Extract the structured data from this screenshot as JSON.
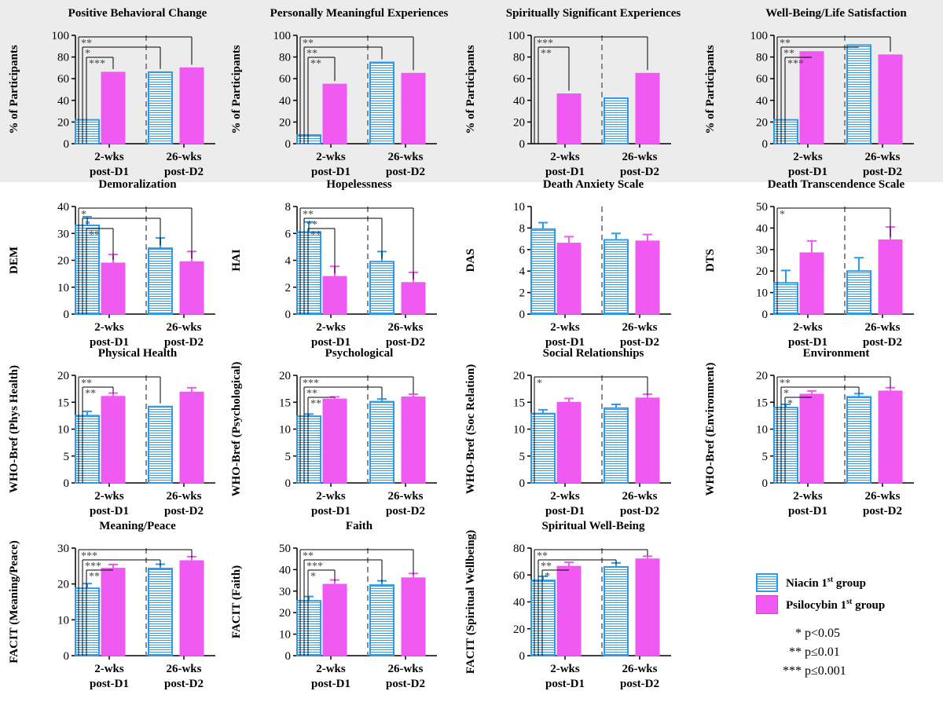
{
  "colors": {
    "niacin": "#2e9bea",
    "psilocybin": "#f15af2",
    "axis": "#000000",
    "divider": "#888888",
    "top_band": "#ececec"
  },
  "legend": {
    "niacin": {
      "label": "Niacin 1",
      "sup": "st",
      "suffix": " group"
    },
    "psilocybin": {
      "label": "Psilocybin 1",
      "sup": "st",
      "suffix": " group"
    }
  },
  "significance_key": [
    {
      "stars": "*",
      "text": "p<0.05"
    },
    {
      "stars": "**",
      "text": "p≤0.01"
    },
    {
      "stars": "***",
      "text": "p≤0.001"
    }
  ],
  "chart_data": [
    {
      "type": "bar",
      "title": "Positive Behavioral Change",
      "ylabel": "% of Participants",
      "ylim": [
        0,
        100
      ],
      "yticks": [
        0,
        20,
        40,
        60,
        80,
        100
      ],
      "categories": [
        [
          "2-wks",
          "post-D1"
        ],
        [
          "26-wks",
          "post-D2"
        ]
      ],
      "series": [
        {
          "name": "Niacin 1st group",
          "values": [
            22,
            66
          ]
        },
        {
          "name": "Psilocybin 1st group",
          "values": [
            66,
            70
          ]
        }
      ],
      "error": null,
      "comparisons": [
        {
          "from": 0,
          "to": 3,
          "label": "**"
        },
        {
          "from": 0,
          "to": 2,
          "label": "*"
        },
        {
          "from": 0,
          "to": 1,
          "label": "***"
        }
      ]
    },
    {
      "type": "bar",
      "title": "Personally Meaningful Experiences",
      "ylabel": "% of Participants",
      "ylim": [
        0,
        100
      ],
      "yticks": [
        0,
        20,
        40,
        60,
        80,
        100
      ],
      "categories": [
        [
          "2-wks",
          "post-D1"
        ],
        [
          "26-wks",
          "post-D2"
        ]
      ],
      "series": [
        {
          "name": "Niacin 1st group",
          "values": [
            8,
            75
          ]
        },
        {
          "name": "Psilocybin 1st group",
          "values": [
            55,
            65
          ]
        }
      ],
      "error": null,
      "comparisons": [
        {
          "from": 0,
          "to": 3,
          "label": "**"
        },
        {
          "from": 0,
          "to": 2,
          "label": "**"
        },
        {
          "from": 0,
          "to": 1,
          "label": "**"
        }
      ]
    },
    {
      "type": "bar",
      "title": "Spiritually Significant Experiences",
      "ylabel": "% of Participants",
      "ylim": [
        0,
        100
      ],
      "yticks": [
        0,
        20,
        40,
        60,
        80,
        100
      ],
      "categories": [
        [
          "2-wks",
          "post-D1"
        ],
        [
          "26-wks",
          "post-D2"
        ]
      ],
      "series": [
        {
          "name": "Niacin 1st group",
          "values": [
            0,
            42
          ]
        },
        {
          "name": "Psilocybin 1st group",
          "values": [
            46,
            65
          ]
        }
      ],
      "error": null,
      "comparisons": [
        {
          "from": 0,
          "to": 3,
          "label": "***"
        },
        {
          "from": 0,
          "to": 1,
          "label": "**"
        }
      ]
    },
    {
      "type": "bar",
      "title": "Well-Being/Life Satisfaction",
      "ylabel": "% of Participants",
      "ylim": [
        0,
        100
      ],
      "yticks": [
        0,
        20,
        40,
        60,
        80,
        100
      ],
      "categories": [
        [
          "2-wks",
          "post-D1"
        ],
        [
          "26-wks",
          "post-D2"
        ]
      ],
      "series": [
        {
          "name": "Niacin 1st group",
          "values": [
            22,
            91
          ]
        },
        {
          "name": "Psilocybin 1st group",
          "values": [
            85,
            82
          ]
        }
      ],
      "error": null,
      "comparisons": [
        {
          "from": 0,
          "to": 3,
          "label": "**"
        },
        {
          "from": 0,
          "to": 2,
          "label": "**"
        },
        {
          "from": 0,
          "to": 1,
          "label": "***"
        }
      ]
    },
    {
      "type": "bar",
      "title": "Demoralization",
      "ylabel": "DEM",
      "ylim": [
        0,
        40
      ],
      "yticks": [
        0,
        10,
        20,
        30,
        40
      ],
      "categories": [
        [
          "2-wks",
          "post-D1"
        ],
        [
          "26-wks",
          "post-D2"
        ]
      ],
      "series": [
        {
          "name": "Niacin 1st group",
          "values": [
            33,
            24.5
          ]
        },
        {
          "name": "Psilocybin 1st group",
          "values": [
            19,
            19.5
          ]
        }
      ],
      "error": [
        [
          3.2,
          3.8
        ],
        [
          3.2,
          3.8
        ]
      ],
      "comparisons": [
        {
          "from": 0,
          "to": 3,
          "label": "*"
        },
        {
          "from": 0,
          "to": 2,
          "label": "*"
        },
        {
          "from": 0,
          "to": 1,
          "label": "**"
        }
      ]
    },
    {
      "type": "bar",
      "title": "Hopelessness",
      "ylabel": "HAI",
      "ylim": [
        0,
        8
      ],
      "yticks": [
        0,
        2,
        4,
        6,
        8
      ],
      "categories": [
        [
          "2-wks",
          "post-D1"
        ],
        [
          "26-wks",
          "post-D2"
        ]
      ],
      "series": [
        {
          "name": "Niacin 1st group",
          "values": [
            6.1,
            3.9
          ]
        },
        {
          "name": "Psilocybin 1st group",
          "values": [
            2.8,
            2.35
          ]
        }
      ],
      "error": [
        [
          0.75,
          0.75
        ],
        [
          0.75,
          0.75
        ]
      ],
      "comparisons": [
        {
          "from": 0,
          "to": 3,
          "label": "**"
        },
        {
          "from": 0,
          "to": 2,
          "label": "**"
        },
        {
          "from": 0,
          "to": 1,
          "label": "**"
        }
      ]
    },
    {
      "type": "bar",
      "title": "Death Anxiety Scale",
      "ylabel": "DAS",
      "ylim": [
        0,
        10
      ],
      "yticks": [
        0,
        2,
        4,
        6,
        8,
        10
      ],
      "categories": [
        [
          "2-wks",
          "post-D1"
        ],
        [
          "26-wks",
          "post-D2"
        ]
      ],
      "series": [
        {
          "name": "Niacin 1st group",
          "values": [
            7.9,
            6.9
          ]
        },
        {
          "name": "Psilocybin 1st group",
          "values": [
            6.6,
            6.8
          ]
        }
      ],
      "error": [
        [
          0.6,
          0.6
        ],
        [
          0.6,
          0.6
        ]
      ],
      "comparisons": []
    },
    {
      "type": "bar",
      "title": "Death Transcendence Scale",
      "ylabel": "DTS",
      "ylim": [
        0,
        50
      ],
      "yticks": [
        0,
        10,
        20,
        30,
        40,
        50
      ],
      "categories": [
        [
          "2-wks",
          "post-D1"
        ],
        [
          "26-wks",
          "post-D2"
        ]
      ],
      "series": [
        {
          "name": "Niacin 1st group",
          "values": [
            14.5,
            20
          ]
        },
        {
          "name": "Psilocybin 1st group",
          "values": [
            28.5,
            34.5
          ]
        }
      ],
      "error": [
        [
          5.8,
          6.2
        ],
        [
          5.5,
          6.0
        ]
      ],
      "comparisons": [
        {
          "from": 0,
          "to": 3,
          "label": "*"
        }
      ]
    },
    {
      "type": "bar",
      "title": "Physical Health",
      "ylabel": "WHO-Bref (Phys Health)",
      "ylim": [
        0,
        20
      ],
      "yticks": [
        0,
        5,
        10,
        15,
        20
      ],
      "categories": [
        [
          "2-wks",
          "post-D1"
        ],
        [
          "26-wks",
          "post-D2"
        ]
      ],
      "series": [
        {
          "name": "Niacin 1st group",
          "values": [
            12.5,
            14.2
          ]
        },
        {
          "name": "Psilocybin 1st group",
          "values": [
            16.1,
            16.9
          ]
        }
      ],
      "error": [
        [
          0.8,
          0.0
        ],
        [
          0.6,
          0.8
        ]
      ],
      "comparisons": [
        {
          "from": 0,
          "to": 2,
          "label": "**"
        },
        {
          "from": 0,
          "to": 1,
          "label": "**"
        }
      ]
    },
    {
      "type": "bar",
      "title": "Psychological",
      "ylabel": "WHO-Bref (Psychological)",
      "ylim": [
        0,
        20
      ],
      "yticks": [
        0,
        5,
        10,
        15,
        20
      ],
      "categories": [
        [
          "2-wks",
          "post-D1"
        ],
        [
          "26-wks",
          "post-D2"
        ]
      ],
      "series": [
        {
          "name": "Niacin 1st group",
          "values": [
            12.4,
            15.1
          ]
        },
        {
          "name": "Psilocybin 1st group",
          "values": [
            15.6,
            16.0
          ]
        }
      ],
      "error": [
        [
          0.4,
          0.5
        ],
        [
          0.4,
          0.5
        ]
      ],
      "comparisons": [
        {
          "from": 0,
          "to": 3,
          "label": "***"
        },
        {
          "from": 0,
          "to": 2,
          "label": "**"
        },
        {
          "from": 0,
          "to": 1,
          "label": "**"
        }
      ]
    },
    {
      "type": "bar",
      "title": "Social Relationships",
      "ylabel": "WHO-Bref (Soc Relation)",
      "ylim": [
        0,
        20
      ],
      "yticks": [
        0,
        5,
        10,
        15,
        20
      ],
      "categories": [
        [
          "2-wks",
          "post-D1"
        ],
        [
          "26-wks",
          "post-D2"
        ]
      ],
      "series": [
        {
          "name": "Niacin 1st group",
          "values": [
            12.9,
            13.9
          ]
        },
        {
          "name": "Psilocybin 1st group",
          "values": [
            15.0,
            15.8
          ]
        }
      ],
      "error": [
        [
          0.7,
          0.7
        ],
        [
          0.7,
          0.7
        ]
      ],
      "comparisons": [
        {
          "from": 0,
          "to": 3,
          "label": "*"
        }
      ]
    },
    {
      "type": "bar",
      "title": "Environment",
      "ylabel": "WHO-Bref (Environment)",
      "ylim": [
        0,
        20
      ],
      "yticks": [
        0,
        5,
        10,
        15,
        20
      ],
      "categories": [
        [
          "2-wks",
          "post-D1"
        ],
        [
          "26-wks",
          "post-D2"
        ]
      ],
      "series": [
        {
          "name": "Niacin 1st group",
          "values": [
            14.0,
            16.0
          ]
        },
        {
          "name": "Psilocybin 1st group",
          "values": [
            16.5,
            17.1
          ]
        }
      ],
      "error": [
        [
          0.6,
          0.6
        ],
        [
          0.6,
          0.6
        ]
      ],
      "comparisons": [
        {
          "from": 0,
          "to": 3,
          "label": "**"
        },
        {
          "from": 0,
          "to": 2,
          "label": "*"
        },
        {
          "from": 0,
          "to": 1,
          "label": "*"
        }
      ]
    },
    {
      "type": "bar",
      "title": "Meaning/Peace",
      "ylabel": "FACIT (Meaning/Peace)",
      "ylim": [
        0,
        30
      ],
      "yticks": [
        0,
        10,
        20,
        30
      ],
      "categories": [
        [
          "2-wks",
          "post-D1"
        ],
        [
          "26-wks",
          "post-D2"
        ]
      ],
      "series": [
        {
          "name": "Niacin 1st group",
          "values": [
            18.8,
            24.3
          ]
        },
        {
          "name": "Psilocybin 1st group",
          "values": [
            24.4,
            26.5
          ]
        }
      ],
      "error": [
        [
          1.3,
          1.2
        ],
        [
          1.0,
          1.1
        ]
      ],
      "comparisons": [
        {
          "from": 0,
          "to": 3,
          "label": "***"
        },
        {
          "from": 0,
          "to": 2,
          "label": "***"
        },
        {
          "from": 0,
          "to": 1,
          "label": "**"
        }
      ]
    },
    {
      "type": "bar",
      "title": "Faith",
      "ylabel": "FACIT (Faith)",
      "ylim": [
        0,
        50
      ],
      "yticks": [
        0,
        10,
        20,
        30,
        40,
        50
      ],
      "categories": [
        [
          "2-wks",
          "post-D1"
        ],
        [
          "26-wks",
          "post-D2"
        ]
      ],
      "series": [
        {
          "name": "Niacin 1st group",
          "values": [
            25.5,
            32.8
          ]
        },
        {
          "name": "Psilocybin 1st group",
          "values": [
            33.2,
            36.2
          ]
        }
      ],
      "error": [
        [
          2.0,
          2.0
        ],
        [
          2.0,
          2.0
        ]
      ],
      "comparisons": [
        {
          "from": 0,
          "to": 3,
          "label": "**"
        },
        {
          "from": 0,
          "to": 2,
          "label": "***"
        },
        {
          "from": 0,
          "to": 1,
          "label": "*"
        }
      ]
    },
    {
      "type": "bar",
      "title": "Spiritual Well-Being",
      "ylabel": "FACIT (Spiritual Wellbeing)",
      "ylim": [
        0,
        80
      ],
      "yticks": [
        0,
        20,
        40,
        60,
        80
      ],
      "categories": [
        [
          "2-wks",
          "post-D1"
        ],
        [
          "26-wks",
          "post-D2"
        ]
      ],
      "series": [
        {
          "name": "Niacin 1st group",
          "values": [
            56,
            66
          ]
        },
        {
          "name": "Psilocybin 1st group",
          "values": [
            66.5,
            72
          ]
        }
      ],
      "error": [
        [
          3.0,
          3.0
        ],
        [
          3.0,
          2.0
        ]
      ],
      "comparisons": [
        {
          "from": 0,
          "to": 3,
          "label": "**"
        },
        {
          "from": 0,
          "to": 2,
          "label": "**"
        },
        {
          "from": 0,
          "to": 1,
          "label": "*"
        }
      ]
    }
  ]
}
